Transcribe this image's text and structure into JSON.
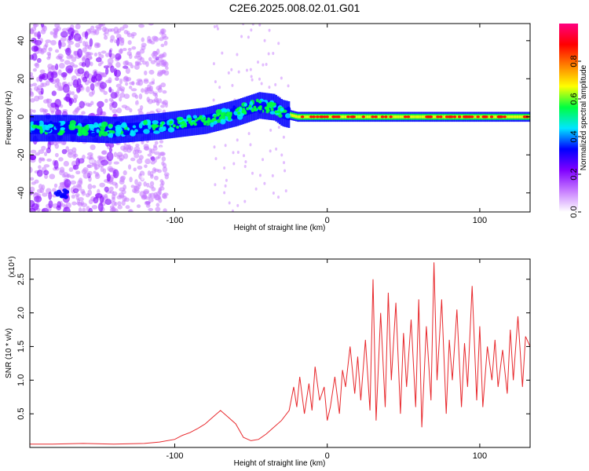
{
  "title": "C2E6.2025.008.02.01.G01",
  "chart_data": [
    {
      "type": "heatmap",
      "xlabel": "Height of straight line (km)",
      "ylabel": "Frequency (Hz)",
      "xlim": [
        -195,
        133
      ],
      "ylim": [
        -50,
        49
      ],
      "x_ticks": [
        -100,
        0,
        100
      ],
      "y_ticks": [
        -40,
        -20,
        0,
        20,
        40
      ],
      "colorbar": {
        "label": "Normalized spectral amplitude",
        "range": [
          0,
          1
        ],
        "ticks": [
          0.0,
          0.2,
          0.4,
          0.6,
          0.8
        ],
        "tick_labels": [
          "0.0",
          "0.2",
          "0.4",
          "0.6",
          "0.8"
        ],
        "colors": [
          "#ffffff",
          "#c77dff",
          "#8000ff",
          "#0000ff",
          "#00e5ff",
          "#00ff40",
          "#ffff00",
          "#ff8000",
          "#ff0000",
          "#ff0080"
        ]
      },
      "ridge": {
        "x": [
          -195,
          -170,
          -140,
          -110,
          -80,
          -60,
          -45,
          -35,
          -30,
          -25,
          -20,
          -10,
          0,
          10,
          20,
          60,
          100,
          133
        ],
        "y": [
          -6,
          -6,
          -7,
          -5,
          -2,
          2,
          6,
          5,
          2,
          1,
          0,
          0,
          0,
          0,
          0,
          0,
          0,
          0
        ]
      }
    },
    {
      "type": "line",
      "xlabel": "Height of straight line (km)",
      "ylabel": "SNR (10 * v/v)",
      "y_multiplier": "(x10⁴)",
      "xlim": [
        -195,
        133
      ],
      "ylim": [
        0,
        2.8
      ],
      "x_ticks": [
        -100,
        0,
        100
      ],
      "y_ticks": [
        0.5,
        1.0,
        1.5,
        2.0,
        2.5
      ],
      "y_tick_labels": [
        "0.5",
        "1.0",
        "1.5",
        "2.0",
        "2.5"
      ],
      "color": "#e8282c",
      "series": [
        {
          "x": [
            -195,
            -180,
            -160,
            -140,
            -120,
            -110,
            -100,
            -95,
            -90,
            -85,
            -80,
            -75,
            -70,
            -65,
            -60,
            -55,
            -50,
            -45,
            -40,
            -35,
            -30,
            -25,
            -22,
            -20,
            -18,
            -15,
            -12,
            -10,
            -8,
            -5,
            -2,
            0,
            2,
            5,
            8,
            10,
            12,
            15,
            18,
            20,
            22,
            25,
            28,
            30,
            32,
            35,
            38,
            40,
            42,
            45,
            48,
            50,
            52,
            55,
            58,
            60,
            62,
            65,
            68,
            70,
            72,
            75,
            78,
            80,
            82,
            85,
            88,
            90,
            92,
            95,
            98,
            100,
            102,
            105,
            108,
            110,
            112,
            115,
            118,
            120,
            122,
            125,
            128,
            130,
            133
          ],
          "y": [
            0.05,
            0.05,
            0.06,
            0.05,
            0.06,
            0.08,
            0.12,
            0.18,
            0.22,
            0.28,
            0.35,
            0.45,
            0.55,
            0.45,
            0.35,
            0.15,
            0.1,
            0.12,
            0.2,
            0.3,
            0.4,
            0.55,
            0.9,
            0.6,
            1.05,
            0.5,
            0.95,
            0.55,
            1.2,
            0.7,
            0.9,
            0.4,
            0.6,
            1.05,
            0.5,
            1.15,
            0.9,
            1.5,
            0.8,
            1.35,
            0.7,
            1.6,
            0.55,
            2.5,
            0.4,
            2.0,
            0.6,
            2.3,
            1.0,
            2.15,
            0.5,
            1.7,
            0.9,
            1.9,
            0.6,
            2.2,
            0.3,
            1.8,
            0.7,
            2.75,
            1.0,
            2.2,
            0.5,
            1.6,
            1.0,
            2.05,
            0.6,
            1.55,
            0.9,
            2.4,
            0.7,
            1.8,
            0.6,
            1.5,
            1.0,
            1.6,
            0.9,
            1.45,
            0.8,
            1.75,
            1.0,
            1.95,
            0.9,
            1.65,
            1.5
          ]
        }
      ]
    }
  ]
}
